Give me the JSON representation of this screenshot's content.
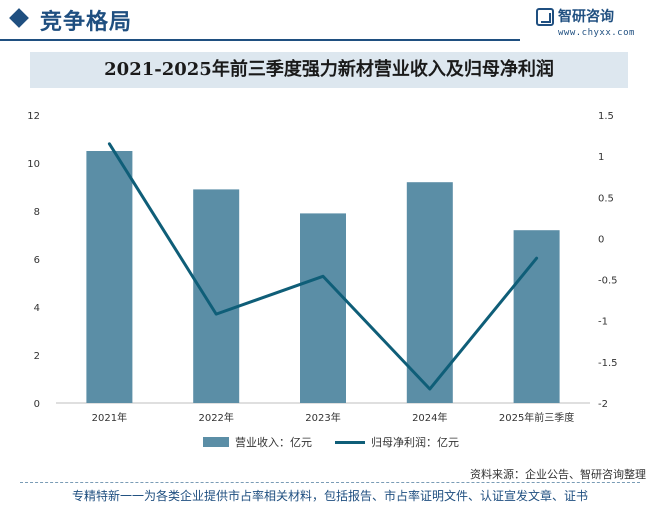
{
  "header": {
    "title": "竞争格局"
  },
  "brand": {
    "name": "智研咨询",
    "url": "www.chyxx.com"
  },
  "colors": {
    "brand": "#1f4f80",
    "bar": "#5b8ea6",
    "line": "#0f5e78",
    "title_bar": "#dde7ef"
  },
  "chart_data": {
    "type": "bar",
    "title": "2021-2025年前三季度强力新材营业收入及归母净利润",
    "categories": [
      "2021年",
      "2022年",
      "2023年",
      "2024年",
      "2025年前三季度"
    ],
    "series": [
      {
        "name": "营业收入：亿元",
        "type": "bar",
        "axis": "left",
        "values": [
          10.5,
          8.9,
          7.9,
          9.2,
          7.2
        ]
      },
      {
        "name": "归母净利润：亿元",
        "type": "line",
        "axis": "right",
        "values": [
          1.15,
          -0.92,
          -0.46,
          -1.83,
          -0.24
        ]
      }
    ],
    "y_left": {
      "ylim": [
        0,
        12
      ],
      "ticks": [
        "0",
        "2",
        "4",
        "6",
        "8",
        "10",
        "12"
      ]
    },
    "y_right": {
      "ylim": [
        -2,
        1.5
      ],
      "ticks": [
        "-2",
        "-1.5",
        "-1",
        "-0.5",
        "0",
        "0.5",
        "1",
        "1.5"
      ]
    },
    "grid": false,
    "legend": "bottom"
  },
  "source": "资料来源：企业公告、智研咨询整理",
  "footer": "专精特新一一为各类企业提供市占率相关材料，包括报告、市占率证明文件、认证宣发文章、证书"
}
